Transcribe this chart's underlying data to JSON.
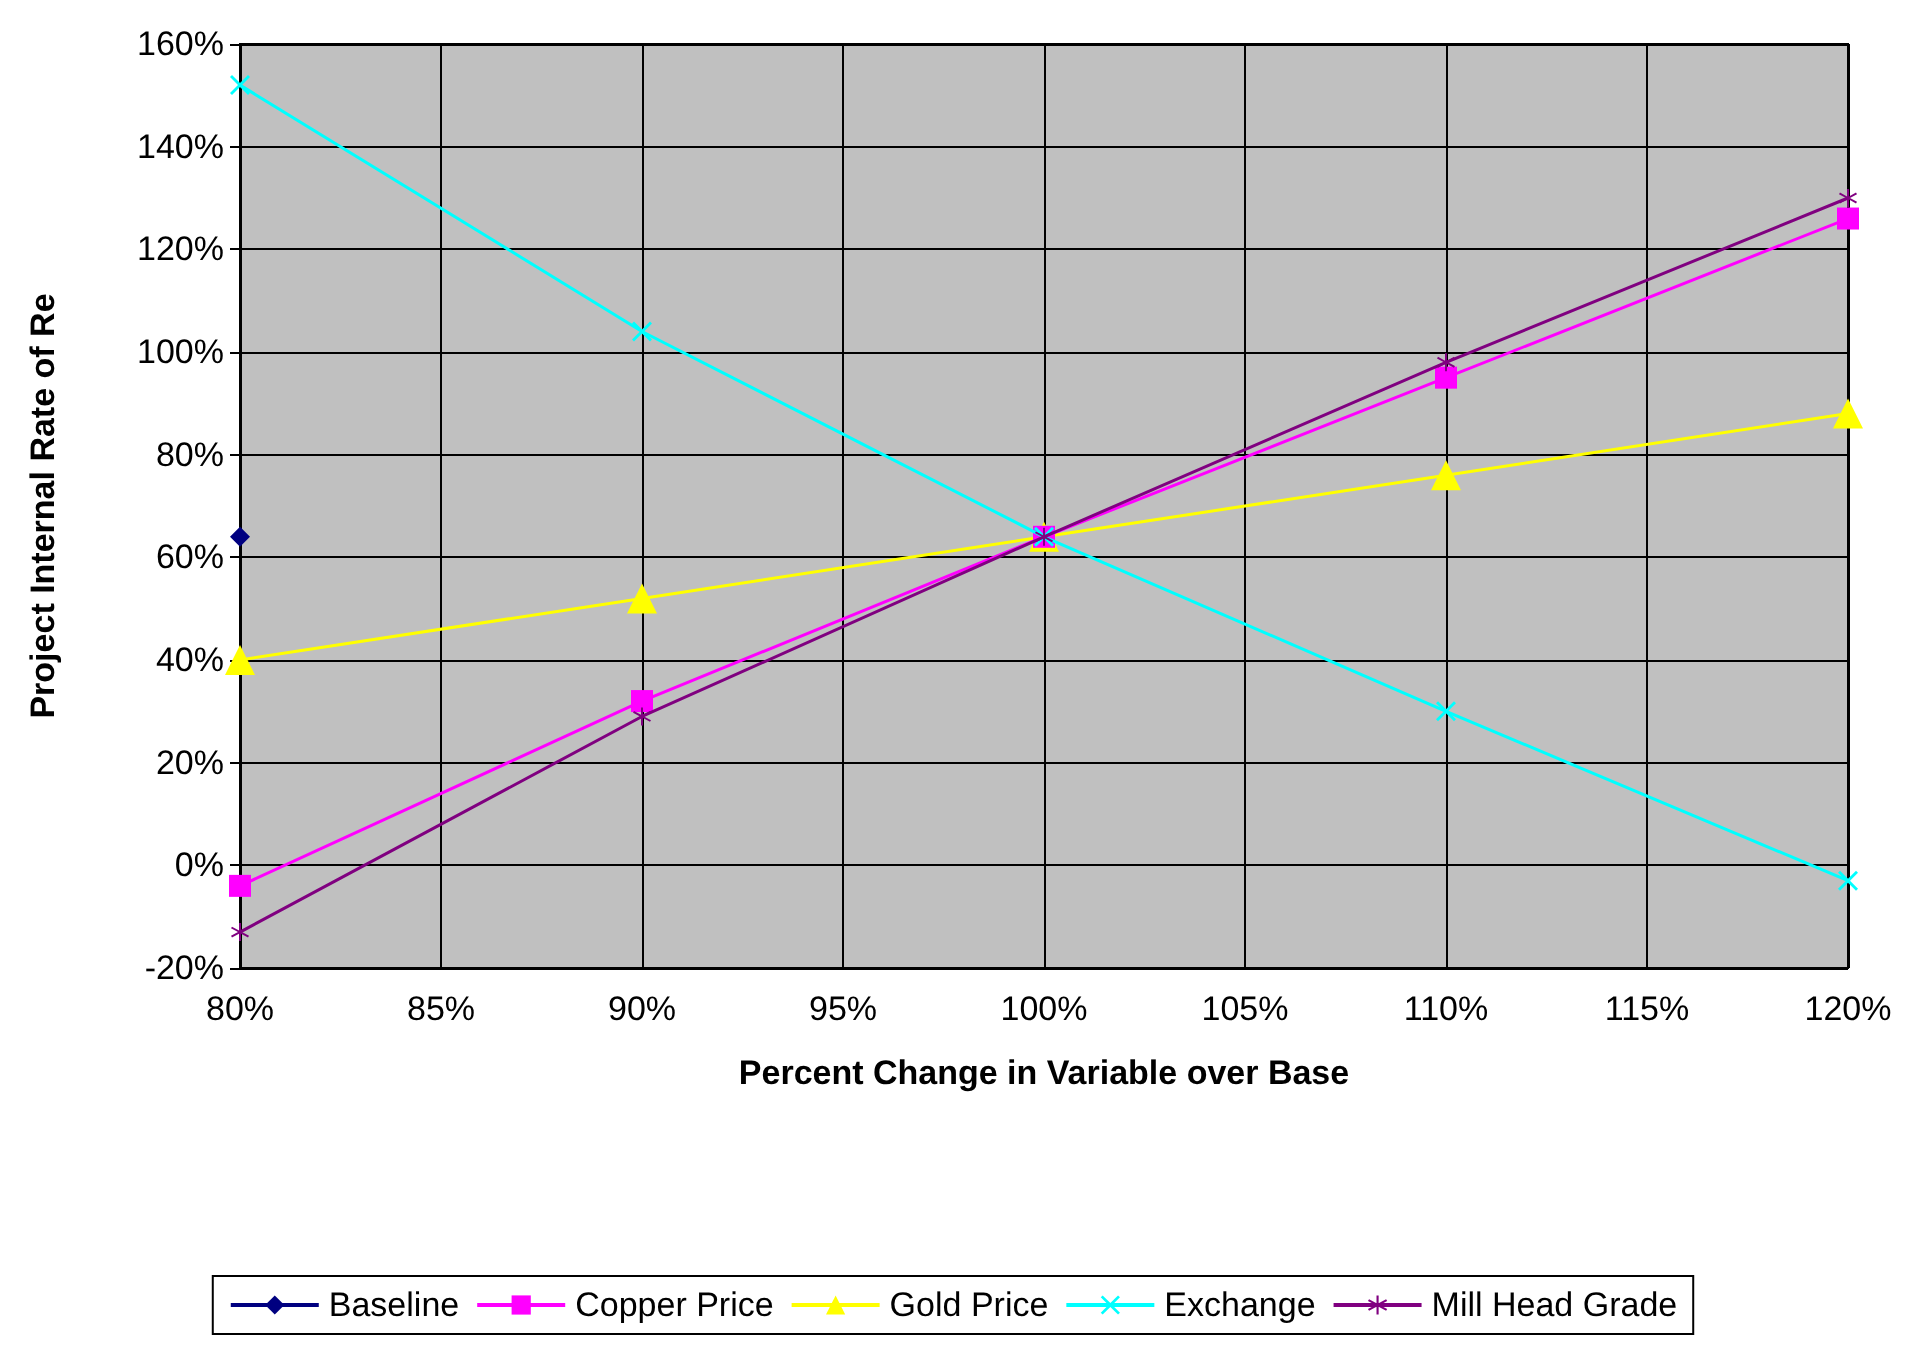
{
  "chart_data": {
    "type": "line",
    "xlabel": "Percent Change in Variable over Base",
    "ylabel": "Project Internal Rate of Re",
    "xlim": [
      80,
      120
    ],
    "xticks": [
      {
        "value": 80,
        "label": "80%"
      },
      {
        "value": 85,
        "label": "85%"
      },
      {
        "value": 90,
        "label": "90%"
      },
      {
        "value": 95,
        "label": "95%"
      },
      {
        "value": 100,
        "label": "100%"
      },
      {
        "value": 105,
        "label": "105%"
      },
      {
        "value": 110,
        "label": "110%"
      },
      {
        "value": 115,
        "label": "115%"
      },
      {
        "value": 120,
        "label": "120%"
      }
    ],
    "ylim": [
      -20,
      160
    ],
    "yticks": [
      {
        "value": -20,
        "label": "-20%"
      },
      {
        "value": 0,
        "label": "0%"
      },
      {
        "value": 20,
        "label": "20%"
      },
      {
        "value": 40,
        "label": "40%"
      },
      {
        "value": 60,
        "label": "60%"
      },
      {
        "value": 80,
        "label": "80%"
      },
      {
        "value": 100,
        "label": "100%"
      },
      {
        "value": 120,
        "label": "120%"
      },
      {
        "value": 140,
        "label": "140%"
      },
      {
        "value": 160,
        "label": "160%"
      }
    ],
    "grid": true,
    "legend": "bottom",
    "line_style": "solid",
    "series": [
      {
        "name": "Baseline",
        "color": "#000080",
        "marker": "diamond",
        "x": [
          80
        ],
        "values": [
          64
        ]
      },
      {
        "name": "Copper Price",
        "color": "#ff00ff",
        "marker": "square",
        "x": [
          80,
          90,
          100,
          110,
          120
        ],
        "values": [
          -4,
          32,
          64,
          95,
          126
        ]
      },
      {
        "name": "Gold Price",
        "color": "#ffff00",
        "marker": "triangle",
        "x": [
          80,
          90,
          100,
          110,
          120
        ],
        "values": [
          40,
          52,
          64,
          76,
          88
        ]
      },
      {
        "name": "Exchange",
        "color": "#00ffff",
        "marker": "cross",
        "x": [
          80,
          90,
          100,
          110,
          120
        ],
        "values": [
          152,
          104,
          64,
          30,
          -3
        ]
      },
      {
        "name": "Mill Head Grade",
        "color": "#800080",
        "marker": "star",
        "x": [
          80,
          90,
          100,
          110,
          120
        ],
        "values": [
          -13,
          29,
          64,
          98,
          130
        ]
      }
    ]
  }
}
